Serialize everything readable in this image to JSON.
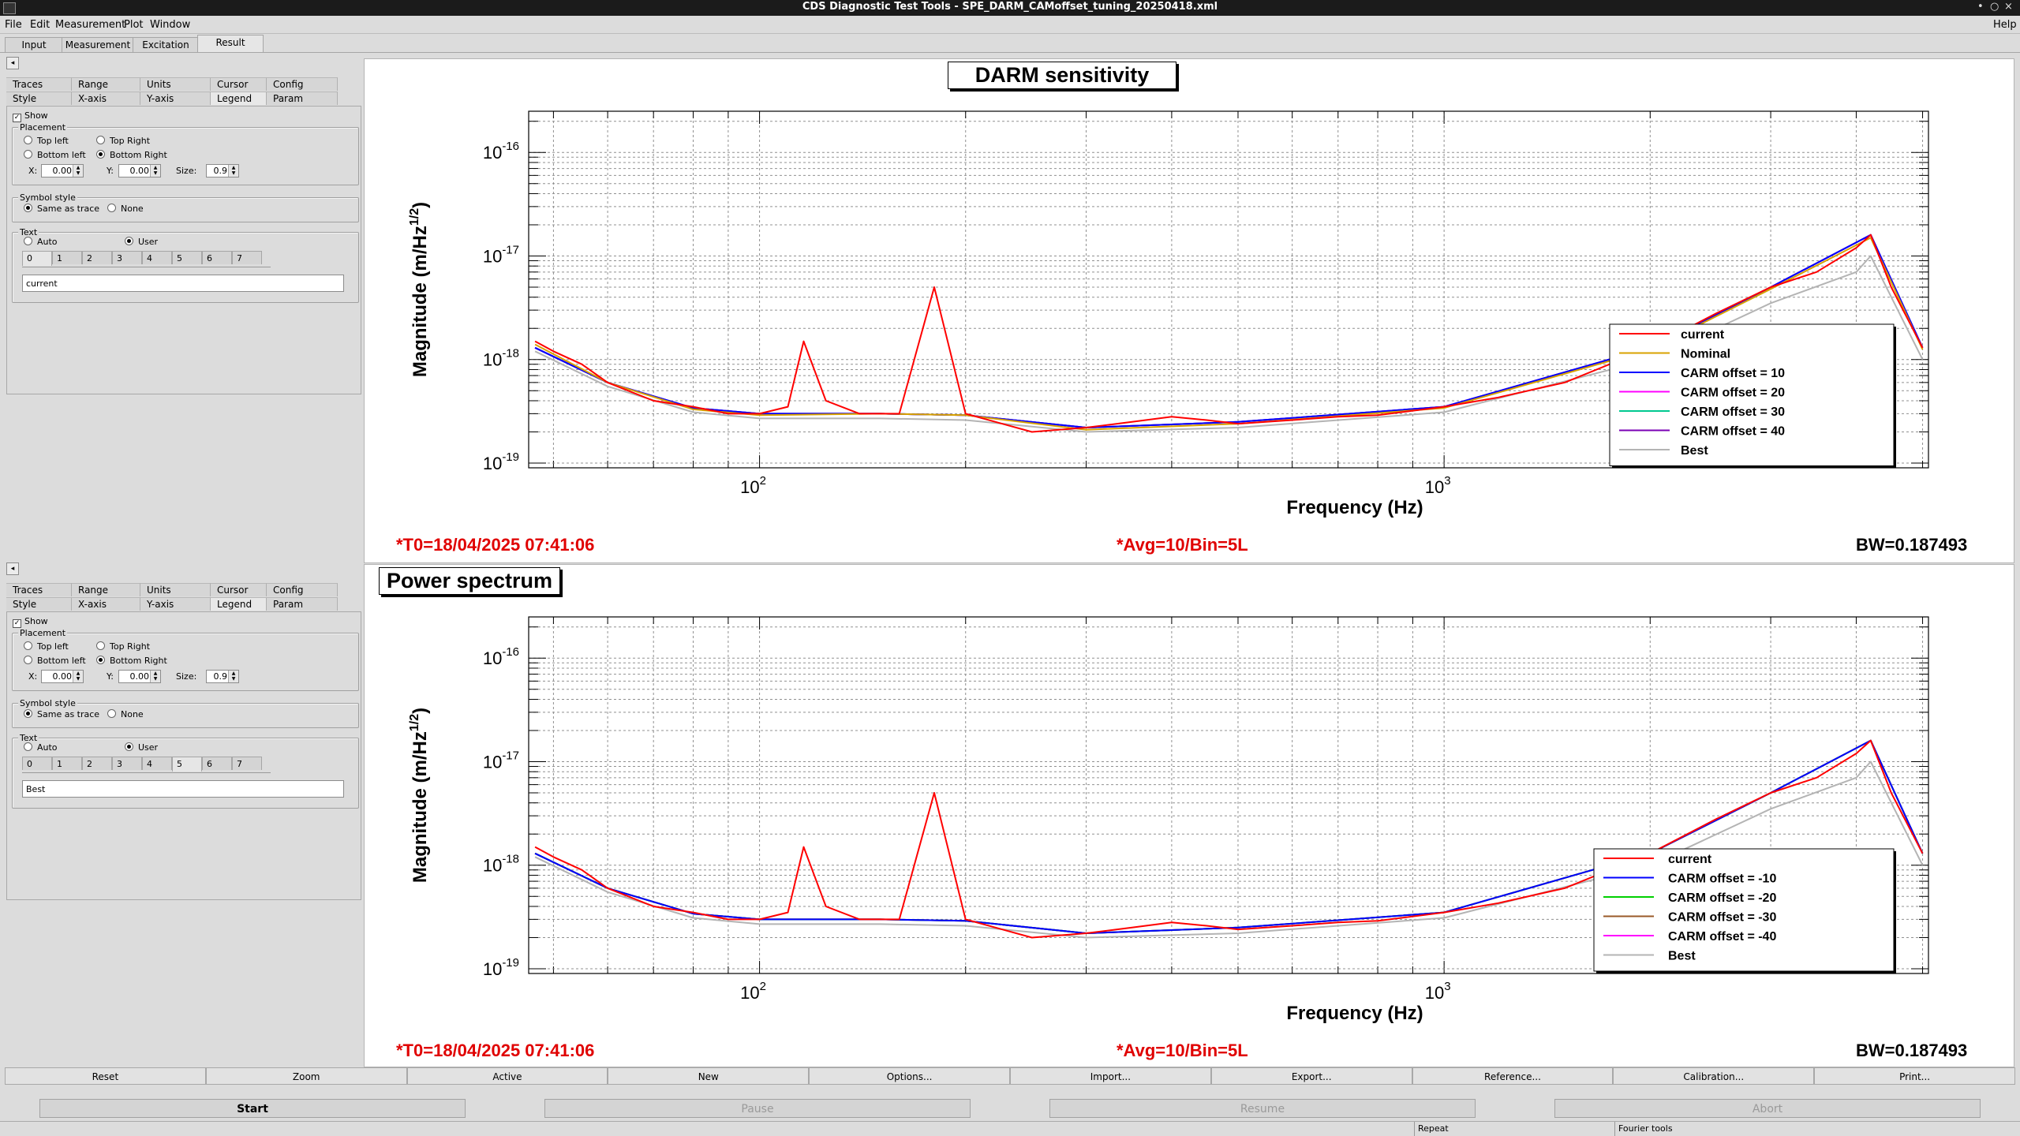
{
  "window": {
    "title": "CDS Diagnostic Test Tools - SPE_DARM_CAMoffset_tuning_20250418.xml",
    "controls": [
      "•",
      "○",
      "×"
    ]
  },
  "menu": {
    "items": [
      {
        "label": "File",
        "key": "F"
      },
      {
        "label": "Edit",
        "key": "E"
      },
      {
        "label": "Measurement",
        "key": "M"
      },
      {
        "label": "Plot",
        "key": "P"
      },
      {
        "label": "Window",
        "key": "W"
      }
    ],
    "help": "Help"
  },
  "main_tabs": [
    "Input",
    "Measurement",
    "Excitation",
    "Result"
  ],
  "main_tab_active": "Result",
  "option_tabs_row1": [
    "Traces",
    "Range",
    "Units",
    "Cursor",
    "Config"
  ],
  "option_tabs_row2": [
    "Style",
    "X-axis",
    "Y-axis",
    "Legend",
    "Param"
  ],
  "option_tab_active": "Legend",
  "collapse_glyph": "◂",
  "legend_panels": [
    {
      "show_label": "Show",
      "show_checked": true,
      "placement_label": "Placement",
      "placements": [
        "Top left",
        "Top Right",
        "Bottom left",
        "Bottom Right"
      ],
      "placement_selected": "Bottom Right",
      "x_label": "X:",
      "x_value": "0.00",
      "y_label": "Y:",
      "y_value": "0.00",
      "size_label": "Size:",
      "size_value": "0.9",
      "symbol_label": "Symbol style",
      "symbol_options": [
        "Same as trace",
        "None"
      ],
      "symbol_selected": "Same as trace",
      "text_label": "Text",
      "text_options": [
        "Auto",
        "User"
      ],
      "text_selected": "User",
      "trace_tabs": [
        "0",
        "1",
        "2",
        "3",
        "4",
        "5",
        "6",
        "7"
      ],
      "trace_tab_active": "0",
      "text_value": "current"
    },
    {
      "show_label": "Show",
      "show_checked": true,
      "placement_label": "Placement",
      "placements": [
        "Top left",
        "Top Right",
        "Bottom left",
        "Bottom Right"
      ],
      "placement_selected": "Bottom Right",
      "x_label": "X:",
      "x_value": "0.00",
      "y_label": "Y:",
      "y_value": "0.00",
      "size_label": "Size:",
      "size_value": "0.9",
      "symbol_label": "Symbol style",
      "symbol_options": [
        "Same as trace",
        "None"
      ],
      "symbol_selected": "Same as trace",
      "text_label": "Text",
      "text_options": [
        "Auto",
        "User"
      ],
      "text_selected": "User",
      "trace_tabs": [
        "0",
        "1",
        "2",
        "3",
        "4",
        "5",
        "6",
        "7"
      ],
      "trace_tab_active": "5",
      "text_value": "Best"
    }
  ],
  "chart_data": [
    {
      "type": "line",
      "title": "DARM sensitivity",
      "xlabel": "Frequency (Hz)",
      "ylabel": "Magnitude (m/Hz^{1/2})",
      "x_scale": "log",
      "y_scale": "log",
      "xlim": [
        46,
        5100
      ],
      "ylim": [
        9e-20,
        2.5e-16
      ],
      "x_ticklabels": [
        "10^2",
        "10^3"
      ],
      "y_ticklabels": [
        "10^-19",
        "10^-18",
        "10^-17",
        "10^-16"
      ],
      "grid": true,
      "legend_placement": "bottom-right",
      "series": [
        {
          "name": "current",
          "color": "#ff0000",
          "x": [
            47,
            50,
            55,
            60,
            70,
            80,
            90,
            100,
            110,
            116,
            125,
            140,
            160,
            180,
            200,
            250,
            300,
            350,
            400,
            450,
            500,
            600,
            700,
            800,
            1000,
            1200,
            1500,
            2000,
            2500,
            3000,
            3500,
            4000,
            4200,
            4500,
            5000
          ],
          "y": [
            1.5e-18,
            1.2e-18,
            9e-19,
            6e-19,
            4e-19,
            3.5e-19,
            3e-19,
            3e-19,
            3.5e-19,
            1.5e-18,
            4e-19,
            3e-19,
            3e-19,
            5e-18,
            3e-19,
            2e-19,
            2.2e-19,
            2.5e-19,
            2.8e-19,
            2.6e-19,
            2.4e-19,
            2.6e-19,
            2.8e-19,
            2.9e-19,
            3.5e-19,
            4.3e-19,
            6e-19,
            1.3e-18,
            2.8e-18,
            5e-18,
            7e-18,
            1.2e-17,
            1.6e-17,
            5e-18,
            1.3e-18
          ]
        },
        {
          "name": "Nominal",
          "color": "#d8a200",
          "x": [
            47,
            60,
            80,
            100,
            150,
            200,
            300,
            500,
            1000,
            2000,
            3000,
            4200,
            5000
          ],
          "y": [
            1.4e-18,
            6e-19,
            3.3e-19,
            2.9e-19,
            3e-19,
            2.9e-19,
            2.1e-19,
            2.4e-19,
            3.4e-19,
            1.25e-18,
            4.8e-18,
            1.5e-17,
            1.25e-18
          ]
        },
        {
          "name": "CARM offset = 10",
          "color": "#0000ff",
          "x": [
            47,
            60,
            80,
            100,
            150,
            200,
            300,
            500,
            1000,
            2000,
            3000,
            4200,
            5000
          ],
          "y": [
            1.3e-18,
            6e-19,
            3.4e-19,
            3e-19,
            3e-19,
            2.9e-19,
            2.2e-19,
            2.5e-19,
            3.5e-19,
            1.3e-18,
            5e-18,
            1.6e-17,
            1.3e-18
          ]
        },
        {
          "name": "CARM offset = 20",
          "color": "#ff00ff",
          "x": [
            47,
            60,
            80,
            100,
            150,
            200,
            300,
            500,
            1000,
            2000,
            3000,
            4200,
            5000
          ],
          "y": [
            1.3e-18,
            6e-19,
            3.4e-19,
            3e-19,
            3e-19,
            2.9e-19,
            2.2e-19,
            2.5e-19,
            3.5e-19,
            1.3e-18,
            5e-18,
            1.6e-17,
            1.3e-18
          ]
        },
        {
          "name": "CARM offset = 30",
          "color": "#00c890",
          "x": [
            47,
            60,
            80,
            100,
            150,
            200,
            300,
            500,
            1000,
            2000,
            3000,
            4200,
            5000
          ],
          "y": [
            1.3e-18,
            6e-19,
            3.4e-19,
            3e-19,
            3e-19,
            2.9e-19,
            2.2e-19,
            2.5e-19,
            3.5e-19,
            1.3e-18,
            5e-18,
            1.6e-17,
            1.3e-18
          ]
        },
        {
          "name": "CARM offset = 40",
          "color": "#7a00b4",
          "x": [
            47,
            60,
            80,
            100,
            150,
            200,
            300,
            500,
            1000,
            2000,
            3000,
            4200,
            5000
          ],
          "y": [
            1.3e-18,
            6e-19,
            3.4e-19,
            3e-19,
            3e-19,
            2.9e-19,
            2.2e-19,
            2.5e-19,
            3.5e-19,
            1.3e-18,
            5e-18,
            1.6e-17,
            1.3e-18
          ]
        },
        {
          "name": "Best",
          "color": "#b4b4b4",
          "x": [
            47,
            60,
            80,
            100,
            150,
            200,
            300,
            500,
            1000,
            2000,
            3000,
            4000,
            4200,
            5000
          ],
          "y": [
            1.2e-18,
            5.5e-19,
            3.1e-19,
            2.7e-19,
            2.7e-19,
            2.6e-19,
            2e-19,
            2.2e-19,
            3.1e-19,
            1e-18,
            3.5e-18,
            7e-18,
            1e-17,
            1e-18
          ]
        }
      ]
    },
    {
      "type": "line",
      "title": "Power spectrum",
      "xlabel": "Frequency (Hz)",
      "ylabel": "Magnitude (m/Hz^{1/2})",
      "x_scale": "log",
      "y_scale": "log",
      "xlim": [
        46,
        5100
      ],
      "ylim": [
        9e-20,
        2.5e-16
      ],
      "x_ticklabels": [
        "10^2",
        "10^3"
      ],
      "y_ticklabels": [
        "10^-19",
        "10^-18",
        "10^-17",
        "10^-16"
      ],
      "grid": true,
      "legend_placement": "bottom-right",
      "series": [
        {
          "name": "current",
          "color": "#ff0000",
          "x": [
            47,
            50,
            55,
            60,
            70,
            80,
            90,
            100,
            110,
            116,
            125,
            140,
            160,
            180,
            200,
            250,
            300,
            350,
            400,
            450,
            500,
            600,
            700,
            800,
            1000,
            1200,
            1500,
            2000,
            2500,
            3000,
            3500,
            4000,
            4200,
            4500,
            5000
          ],
          "y": [
            1.5e-18,
            1.2e-18,
            9e-19,
            6e-19,
            4e-19,
            3.5e-19,
            3e-19,
            3e-19,
            3.5e-19,
            1.5e-18,
            4e-19,
            3e-19,
            3e-19,
            5e-18,
            3e-19,
            2e-19,
            2.2e-19,
            2.5e-19,
            2.8e-19,
            2.6e-19,
            2.4e-19,
            2.6e-19,
            2.8e-19,
            2.9e-19,
            3.5e-19,
            4.3e-19,
            6e-19,
            1.3e-18,
            2.8e-18,
            5e-18,
            7e-18,
            1.2e-17,
            1.6e-17,
            5e-18,
            1.3e-18
          ]
        },
        {
          "name": "CARM offset = -10",
          "color": "#0000ff",
          "x": [
            47,
            60,
            80,
            100,
            150,
            200,
            300,
            500,
            1000,
            2000,
            3000,
            4200,
            5000
          ],
          "y": [
            1.3e-18,
            6e-19,
            3.4e-19,
            3e-19,
            3e-19,
            2.9e-19,
            2.2e-19,
            2.5e-19,
            3.5e-19,
            1.3e-18,
            5e-18,
            1.6e-17,
            1.3e-18
          ]
        },
        {
          "name": "CARM offset = -20",
          "color": "#00d000",
          "x": [
            47,
            60,
            80,
            100,
            150,
            200,
            300,
            500,
            1000,
            2000,
            3000,
            4200,
            5000
          ],
          "y": [
            1.3e-18,
            6e-19,
            3.4e-19,
            3e-19,
            3e-19,
            2.9e-19,
            2.2e-19,
            2.5e-19,
            3.5e-19,
            1.3e-18,
            5e-18,
            1.6e-17,
            1.3e-18
          ]
        },
        {
          "name": "CARM offset = -30",
          "color": "#9a5a28",
          "x": [
            47,
            60,
            80,
            100,
            150,
            200,
            300,
            500,
            1000,
            2000,
            3000,
            4200,
            5000
          ],
          "y": [
            1.3e-18,
            6e-19,
            3.4e-19,
            3e-19,
            3e-19,
            2.9e-19,
            2.2e-19,
            2.5e-19,
            3.5e-19,
            1.3e-18,
            5e-18,
            1.6e-17,
            1.3e-18
          ]
        },
        {
          "name": "CARM offset = -40",
          "color": "#ff00ff",
          "x": [
            47,
            60,
            80,
            100,
            150,
            200,
            300,
            500,
            1000,
            2000,
            3000,
            4200,
            5000
          ],
          "y": [
            1.3e-18,
            6e-19,
            3.4e-19,
            3e-19,
            3e-19,
            2.9e-19,
            2.2e-19,
            2.5e-19,
            3.5e-19,
            1.3e-18,
            5e-18,
            1.6e-17,
            1.3e-18
          ]
        },
        {
          "name": "Best",
          "color": "#b4b4b4",
          "x": [
            47,
            60,
            80,
            100,
            150,
            200,
            300,
            500,
            1000,
            2000,
            3000,
            4000,
            4200,
            5000
          ],
          "y": [
            1.2e-18,
            5.5e-19,
            3.1e-19,
            2.7e-19,
            2.7e-19,
            2.6e-19,
            2e-19,
            2.2e-19,
            3.1e-19,
            1e-18,
            3.5e-18,
            7e-18,
            1e-17,
            1e-18
          ]
        }
      ]
    }
  ],
  "plot_status": [
    {
      "t0": "*T0=18/04/2025 07:41:06",
      "avg": "*Avg=10/Bin=5L",
      "bw": "BW=0.187493"
    },
    {
      "t0": "*T0=18/04/2025 07:41:06",
      "avg": "*Avg=10/Bin=5L",
      "bw": "BW=0.187493"
    }
  ],
  "toolbar": [
    "Reset",
    "Zoom",
    "Active",
    "New",
    "Options...",
    "Import...",
    "Export...",
    "Reference...",
    "Calibration...",
    "Print..."
  ],
  "run_controls": [
    {
      "label": "Start",
      "enabled": true
    },
    {
      "label": "Pause",
      "enabled": false
    },
    {
      "label": "Resume",
      "enabled": false
    },
    {
      "label": "Abort",
      "enabled": false
    }
  ],
  "statusbar": [
    "Repeat",
    "Fourier tools"
  ],
  "colors": {
    "status_red": "#e00000",
    "grid": "#909090",
    "background": "#dcdcdc"
  }
}
